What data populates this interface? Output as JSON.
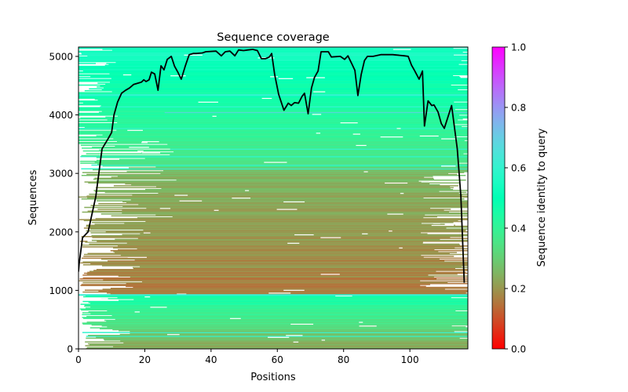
{
  "chart_data": {
    "type": "heatmap",
    "title": "Sequence coverage",
    "xlabel": "Positions",
    "ylabel": "Sequences",
    "xlim": [
      0,
      117.5
    ],
    "ylim": [
      0,
      5160
    ],
    "x_ticks": [
      0,
      20,
      40,
      60,
      80,
      100
    ],
    "y_ticks": [
      0,
      1000,
      2000,
      3000,
      4000,
      5000
    ],
    "colorbar": {
      "label": "Sequence identity to query",
      "range": [
        0.0,
        1.0
      ],
      "ticks": [
        "0.0",
        "0.2",
        "0.4",
        "0.6",
        "0.8",
        "1.0"
      ],
      "colormap": "rainbow_r"
    },
    "heatmap_regions": [
      {
        "name": "low-identity block",
        "seq_range": [
          0,
          925
        ],
        "identity_range": [
          0.2,
          0.5
        ]
      },
      {
        "name": "lower-identity block",
        "seq_range": [
          925,
          3100
        ],
        "identity_range": [
          0.1,
          0.3
        ]
      },
      {
        "name": "higher-identity block",
        "seq_range": [
          3100,
          5160
        ],
        "identity_range": [
          0.3,
          0.55
        ]
      }
    ],
    "series": [
      {
        "name": "coverage",
        "color": "#000000",
        "x": [
          0,
          0.2,
          1.2,
          2.9,
          5.2,
          7.1,
          9.0,
          10.0,
          10.7,
          11.8,
          13.0,
          14.2,
          15.4,
          16.6,
          19.0,
          19.7,
          20.4,
          21.3,
          22.0,
          23.0,
          24.0,
          24.9,
          25.8,
          26.8,
          28.0,
          29.0,
          30.0,
          31.0,
          32.2,
          33.4,
          34.6,
          35.5,
          37.4,
          38.4,
          41.5,
          43.1,
          44.3,
          45.7,
          47.2,
          48.3,
          49.8,
          51.2,
          52.6,
          54.0,
          55.2,
          56.4,
          57.6,
          58.3,
          59.2,
          60.4,
          62.0,
          63.3,
          64.2,
          65.2,
          66.4,
          67.5,
          68.2,
          69.3,
          70.3,
          71.2,
          72.3,
          73.2,
          75.4,
          76.3,
          79.0,
          80.3,
          81.3,
          82.5,
          83.4,
          84.3,
          85.3,
          86.3,
          87.2,
          88.9,
          91.2,
          94.8,
          98.3,
          99.5,
          100.5,
          101.4,
          102.8,
          103.8,
          104.4,
          105.5,
          106.6,
          107.3,
          108.5,
          109.5,
          110.4,
          111.4,
          112.6,
          114.3,
          115.4,
          116.4
        ],
        "y": [
          1320,
          1450,
          1900,
          2000,
          2600,
          3420,
          3600,
          3700,
          4000,
          4220,
          4370,
          4420,
          4460,
          4520,
          4560,
          4600,
          4570,
          4600,
          4730,
          4700,
          4420,
          4840,
          4770,
          4950,
          5000,
          4830,
          4730,
          4610,
          4830,
          5030,
          5050,
          5050,
          5060,
          5080,
          5090,
          5010,
          5080,
          5090,
          5010,
          5110,
          5100,
          5110,
          5120,
          5100,
          4960,
          4960,
          4990,
          5050,
          4690,
          4350,
          4080,
          4200,
          4160,
          4210,
          4200,
          4320,
          4370,
          4020,
          4460,
          4640,
          4750,
          5080,
          5080,
          4990,
          5000,
          4950,
          5010,
          4870,
          4760,
          4330,
          4690,
          4930,
          5000,
          5000,
          5030,
          5030,
          5010,
          5000,
          4850,
          4760,
          4610,
          4750,
          3810,
          4240,
          4160,
          4170,
          4050,
          3850,
          3770,
          3950,
          4160,
          3420,
          2610,
          1130
        ]
      }
    ]
  }
}
